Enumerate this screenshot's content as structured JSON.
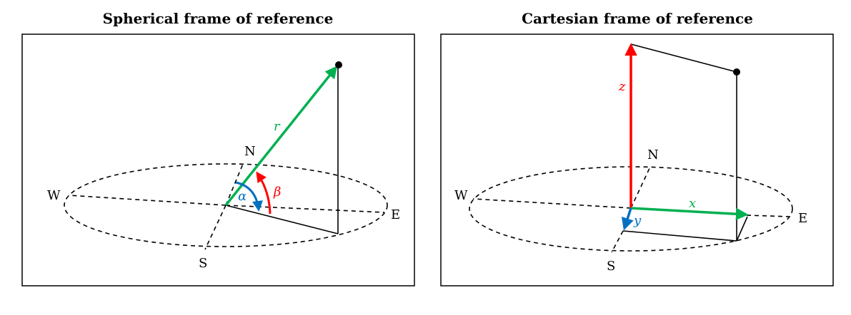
{
  "panels": {
    "left": {
      "title": "Spherical frame of reference",
      "compass": {
        "north": "N",
        "south": "S",
        "east": "E",
        "west": "W"
      },
      "symbols": {
        "radius": "r",
        "azimuth": "α",
        "elevation": "β"
      }
    },
    "right": {
      "title": "Cartesian frame of reference",
      "compass": {
        "north": "N",
        "south": "S",
        "east": "E",
        "west": "W"
      },
      "symbols": {
        "x": "x",
        "y": "y",
        "z": "z"
      }
    }
  },
  "colors": {
    "radius": "#00b050",
    "azimuth": "#0070c0",
    "elevation": "#ff0000",
    "x_axis": "#00b050",
    "y_axis": "#0070c0",
    "z_axis": "#ff0000",
    "line": "#000000"
  }
}
